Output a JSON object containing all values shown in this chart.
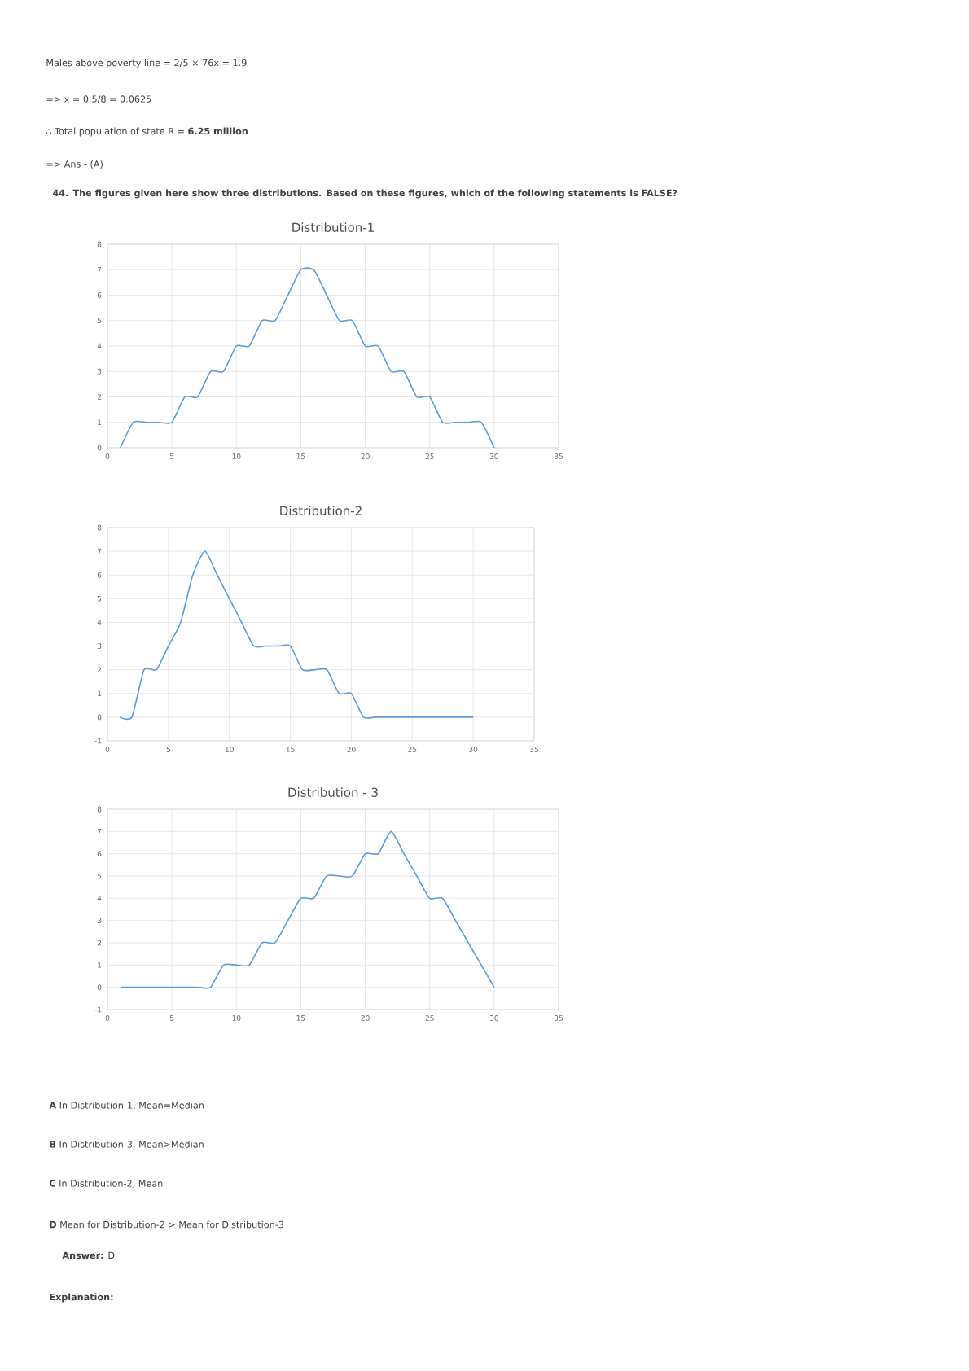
{
  "chart_data": [
    {
      "type": "line",
      "title": "Distribution-1",
      "color": "#5b9bd5",
      "grid": true,
      "x": [
        1,
        2,
        3,
        4,
        5,
        6,
        7,
        8,
        9,
        10,
        11,
        12,
        13,
        14,
        15,
        16,
        17,
        18,
        19,
        20,
        21,
        22,
        23,
        24,
        25,
        26,
        27,
        28,
        29,
        30
      ],
      "values": [
        0,
        1,
        1,
        1,
        1,
        2,
        2,
        3,
        3,
        4,
        4,
        5,
        5,
        6,
        7,
        7,
        6,
        5,
        5,
        4,
        4,
        3,
        3,
        2,
        2,
        1,
        1,
        1,
        1,
        0
      ],
      "xlim": [
        0,
        35
      ],
      "xticks": [
        0,
        5,
        10,
        15,
        20,
        25,
        30,
        35
      ],
      "ylim": [
        0,
        8
      ],
      "yticks": [
        0,
        1,
        2,
        3,
        4,
        5,
        6,
        7,
        8
      ],
      "annotations": [
        "Males above poverty line = 2/5 × 76x = 1.9",
        "=> x = 0.5/8 = 0.0625",
        "∴ Total population of state R = **6.25 million**",
        "=> Ans - (A)",
        "**44.  The figures given here show three distributions. Based on these figures, which of the following statements is FALSE?**"
      ]
    },
    {
      "type": "line",
      "title": "Distribution-2",
      "color": "#5b9bd5",
      "grid": true,
      "x": [
        1,
        2,
        3,
        4,
        5,
        6,
        7,
        8,
        9,
        10,
        11,
        12,
        13,
        14,
        15,
        16,
        17,
        18,
        19,
        20,
        21,
        22,
        23,
        24,
        25,
        26,
        27,
        28,
        29,
        30
      ],
      "values": [
        0,
        0,
        2,
        2,
        3,
        4,
        6,
        7,
        6,
        5,
        4,
        3,
        3,
        3,
        3,
        2,
        2,
        2,
        1,
        1,
        0,
        0,
        0,
        0,
        0,
        0,
        0,
        0,
        0,
        0
      ],
      "xlim": [
        0,
        35
      ],
      "xticks": [
        0,
        5,
        10,
        15,
        20,
        25,
        30,
        35
      ],
      "ylim": [
        -1,
        8
      ],
      "yticks": [
        -1,
        0,
        1,
        2,
        3,
        4,
        5,
        6,
        7,
        8
      ]
    },
    {
      "type": "line",
      "title": "Distribution - 3",
      "color": "#5b9bd5",
      "grid": true,
      "x": [
        1,
        2,
        3,
        4,
        5,
        6,
        7,
        8,
        9,
        10,
        11,
        12,
        13,
        14,
        15,
        16,
        17,
        18,
        19,
        20,
        21,
        22,
        23,
        24,
        25,
        26,
        27,
        28,
        29,
        30
      ],
      "values": [
        0,
        0,
        0,
        0,
        0,
        0,
        0,
        0,
        1,
        1,
        1,
        2,
        2,
        3,
        4,
        4,
        5,
        5,
        5,
        6,
        6,
        7,
        6,
        5,
        4,
        4,
        3,
        2,
        1,
        0
      ],
      "xlim": [
        0,
        35
      ],
      "xticks": [
        0,
        5,
        10,
        15,
        20,
        25,
        30,
        35
      ],
      "ylim": [
        -1,
        8
      ],
      "yticks": [
        -1,
        0,
        1,
        2,
        3,
        4,
        5,
        6,
        7,
        8
      ],
      "annotations": [
        "**A**   In Distribution-1, Mean=Median",
        "**B**   In Distribution-3, Mean>Median",
        "**C**   In Distribution-2, Mean",
        "**D**   Mean for Distribution-2 > Mean for Distribution-3",
        "**Answer:** D",
        "**Explanation:**"
      ]
    }
  ]
}
